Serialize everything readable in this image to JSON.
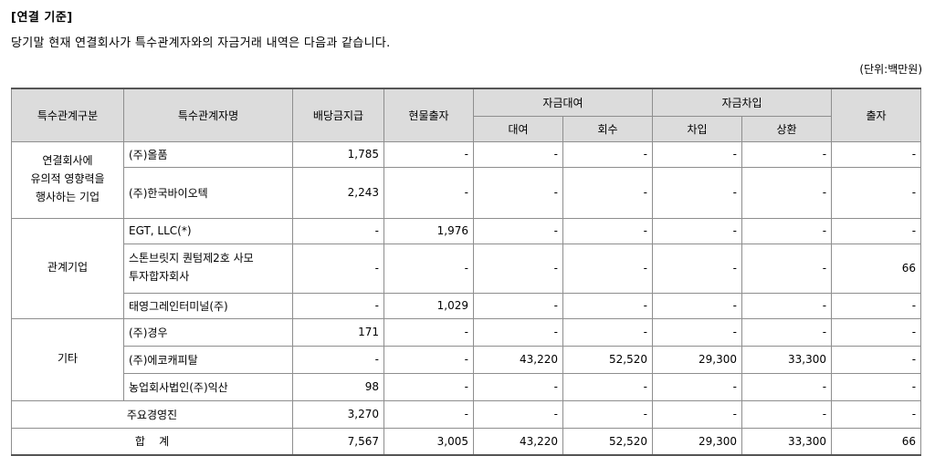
{
  "heading": "[연결 기준]",
  "description": "당기말 현재 연결회사가 특수관계자와의 자금거래 내역은 다음과 같습니다.",
  "unit": "(단위:백만원)",
  "headers": {
    "category": "특수관계구분",
    "name": "특수관계자명",
    "dividend": "배당금지급",
    "in_kind": "현물출자",
    "loan_group": "자금대여",
    "loan": "대여",
    "collection": "회수",
    "borrow_group": "자금차입",
    "borrowing": "차입",
    "repayment": "상환",
    "investment": "출자"
  },
  "groups": [
    {
      "label": "연결회사에\n유의적 영향력을\n행사하는 기업"
    },
    {
      "label": "관계기업"
    },
    {
      "label": "기타"
    }
  ],
  "rows": [
    {
      "name": "(주)올품",
      "cells": [
        "1,785",
        "-",
        "-",
        "-",
        "-",
        "-",
        "-"
      ]
    },
    {
      "name": "(주)한국바이오텍",
      "cells": [
        "2,243",
        "-",
        "-",
        "-",
        "-",
        "-",
        "-"
      ]
    },
    {
      "name": "EGT, LLC(*)",
      "cells": [
        "-",
        "1,976",
        "-",
        "-",
        "-",
        "-",
        "-"
      ]
    },
    {
      "name": "스톤브릿지 퀀텀제2호 사모\n투자합자회사",
      "cells": [
        "-",
        "-",
        "-",
        "-",
        "-",
        "-",
        "66"
      ]
    },
    {
      "name": "태영그레인터미널(주)",
      "cells": [
        "-",
        "1,029",
        "-",
        "-",
        "-",
        "-",
        "-"
      ]
    },
    {
      "name": "(주)경우",
      "cells": [
        "171",
        "-",
        "-",
        "-",
        "-",
        "-",
        "-"
      ]
    },
    {
      "name": "(주)에코캐피탈",
      "cells": [
        "-",
        "-",
        "43,220",
        "52,520",
        "29,300",
        "33,300",
        "-"
      ]
    },
    {
      "name": "농업회사법인(주)익산",
      "cells": [
        "98",
        "-",
        "-",
        "-",
        "-",
        "-",
        "-"
      ]
    }
  ],
  "executives": {
    "label": "주요경영진",
    "cells": [
      "3,270",
      "-",
      "-",
      "-",
      "-",
      "-",
      "-"
    ]
  },
  "total": {
    "label": "합    계",
    "cells": [
      "7,567",
      "3,005",
      "43,220",
      "52,520",
      "29,300",
      "33,300",
      "66"
    ]
  }
}
